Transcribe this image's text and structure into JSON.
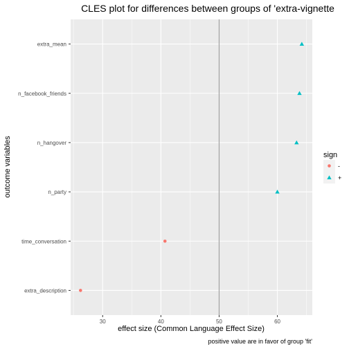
{
  "chart_data": {
    "type": "scatter",
    "title": "CLES plot for differences between groups of 'extra-vignette",
    "xlabel": "effect size (Common Language Effect Size)",
    "ylabel": "outcome variables",
    "caption": "positive value are in favor of group 'fit'",
    "xlim": [
      24.5,
      66
    ],
    "x_ticks": [
      30,
      40,
      50,
      60
    ],
    "reference_line": 50,
    "categories": [
      "extra_description",
      "time_conversation",
      "n_party",
      "n_hangover",
      "n_facebook_friends",
      "extra_mean"
    ],
    "points": [
      {
        "category": "extra_mean",
        "value": 64.2,
        "sign": "+"
      },
      {
        "category": "n_facebook_friends",
        "value": 63.8,
        "sign": "+"
      },
      {
        "category": "n_hangover",
        "value": 63.3,
        "sign": "+"
      },
      {
        "category": "n_party",
        "value": 60.0,
        "sign": "+"
      },
      {
        "category": "time_conversation",
        "value": 40.7,
        "sign": "-"
      },
      {
        "category": "extra_description",
        "value": 26.2,
        "sign": "-"
      }
    ],
    "legend": {
      "title": "sign",
      "position": "right",
      "entries": [
        {
          "label": "-",
          "color": "#F8766D",
          "shape": "circle"
        },
        {
          "label": "+",
          "color": "#00BFC4",
          "shape": "triangle"
        }
      ]
    },
    "grid": true,
    "colors": {
      "panel": "#EBEBEB",
      "grid": "#FFFFFF",
      "reference": "#A0A0A0"
    }
  }
}
